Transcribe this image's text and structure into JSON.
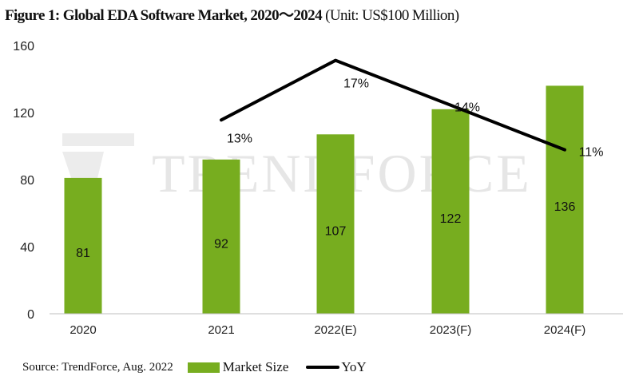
{
  "title": {
    "main": "Figure 1: Global EDA Software Market, 2020～2024",
    "unit": "(Unit: US$100 Million)"
  },
  "watermark": "TRENDFORCE",
  "source": "Source: TrendForce, Aug. 2022",
  "colors": {
    "bar": "#77ad1f",
    "line": "#000000",
    "watermark": "#e6e6e6"
  },
  "chart_data": {
    "type": "bar",
    "title": "Figure 1: Global EDA Software Market, 2020～2024 (Unit: US$100 Million)",
    "categories": [
      "2020",
      "2021",
      "2022(E)",
      "2023(F)",
      "2024(F)"
    ],
    "series": [
      {
        "name": "Market Size",
        "type": "bar",
        "values": [
          81,
          92,
          107,
          122,
          136
        ],
        "labels": [
          "81",
          "92",
          "107",
          "122",
          "136"
        ]
      },
      {
        "name": "YoY",
        "type": "line",
        "axis": "secondary",
        "values": [
          null,
          13,
          17,
          14,
          11
        ],
        "labels": [
          "",
          "13%",
          "17%",
          "14%",
          "11%"
        ]
      }
    ],
    "ylim": [
      0,
      160
    ],
    "yticks": [
      "0",
      "40",
      "80",
      "120",
      "160"
    ],
    "y2lim": [
      0,
      18
    ],
    "grid": false,
    "legend": "bottom",
    "xlabel": "",
    "ylabel": ""
  }
}
